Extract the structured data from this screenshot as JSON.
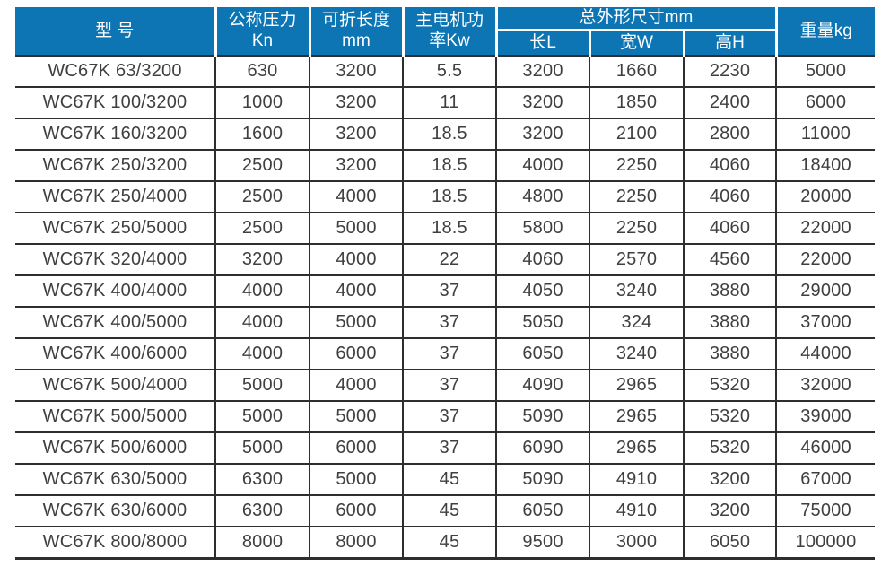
{
  "table": {
    "headers": {
      "model": "型 号",
      "pressure": {
        "line1": "公称压力",
        "line2": "Kn"
      },
      "fold_length": {
        "line1": "可折长度",
        "line2": "mm"
      },
      "motor_power": {
        "line1": "主电机功",
        "line2": "率Kw"
      },
      "dimensions": {
        "group": "总外形尺寸mm",
        "length": "长L",
        "width": "宽W",
        "height": "高H"
      },
      "weight": "重量kg"
    },
    "rows": [
      [
        "WC67K 63/3200",
        "630",
        "3200",
        "5.5",
        "3200",
        "1660",
        "2230",
        "5000"
      ],
      [
        "WC67K 100/3200",
        "1000",
        "3200",
        "11",
        "3200",
        "1850",
        "2400",
        "6000"
      ],
      [
        "WC67K 160/3200",
        "1600",
        "3200",
        "18.5",
        "3200",
        "2100",
        "2800",
        "11000"
      ],
      [
        "WC67K 250/3200",
        "2500",
        "3200",
        "18.5",
        "4000",
        "2250",
        "4060",
        "18400"
      ],
      [
        "WC67K 250/4000",
        "2500",
        "4000",
        "18.5",
        "4800",
        "2250",
        "4060",
        "20000"
      ],
      [
        "WC67K 250/5000",
        "2500",
        "5000",
        "18.5",
        "5800",
        "2250",
        "4060",
        "22000"
      ],
      [
        "WC67K 320/4000",
        "3200",
        "4000",
        "22",
        "4060",
        "2570",
        "4560",
        "22000"
      ],
      [
        "WC67K 400/4000",
        "4000",
        "4000",
        "37",
        "4050",
        "3240",
        "3880",
        "29000"
      ],
      [
        "WC67K 400/5000",
        "4000",
        "5000",
        "37",
        "5050",
        "324",
        "3880",
        "37000"
      ],
      [
        "WC67K 400/6000",
        "4000",
        "6000",
        "37",
        "6050",
        "3240",
        "3880",
        "44000"
      ],
      [
        "WC67K 500/4000",
        "5000",
        "4000",
        "37",
        "4090",
        "2965",
        "5320",
        "32000"
      ],
      [
        "WC67K 500/5000",
        "5000",
        "5000",
        "37",
        "5090",
        "2965",
        "5320",
        "39000"
      ],
      [
        "WC67K 500/6000",
        "5000",
        "6000",
        "37",
        "6090",
        "2965",
        "5320",
        "46000"
      ],
      [
        "WC67K 630/5000",
        "6300",
        "5000",
        "45",
        "5090",
        "4910",
        "3200",
        "67000"
      ],
      [
        "WC67K 630/6000",
        "6300",
        "6000",
        "45",
        "6050",
        "4910",
        "3200",
        "75000"
      ],
      [
        "WC67K 800/8000",
        "8000",
        "8000",
        "45",
        "9500",
        "3000",
        "6050",
        "100000"
      ]
    ],
    "colors": {
      "header_bg": "#0d75b4",
      "header_text": "#ffffff",
      "border": "#2e2e2e",
      "cell_text": "#3f3f3f"
    }
  }
}
